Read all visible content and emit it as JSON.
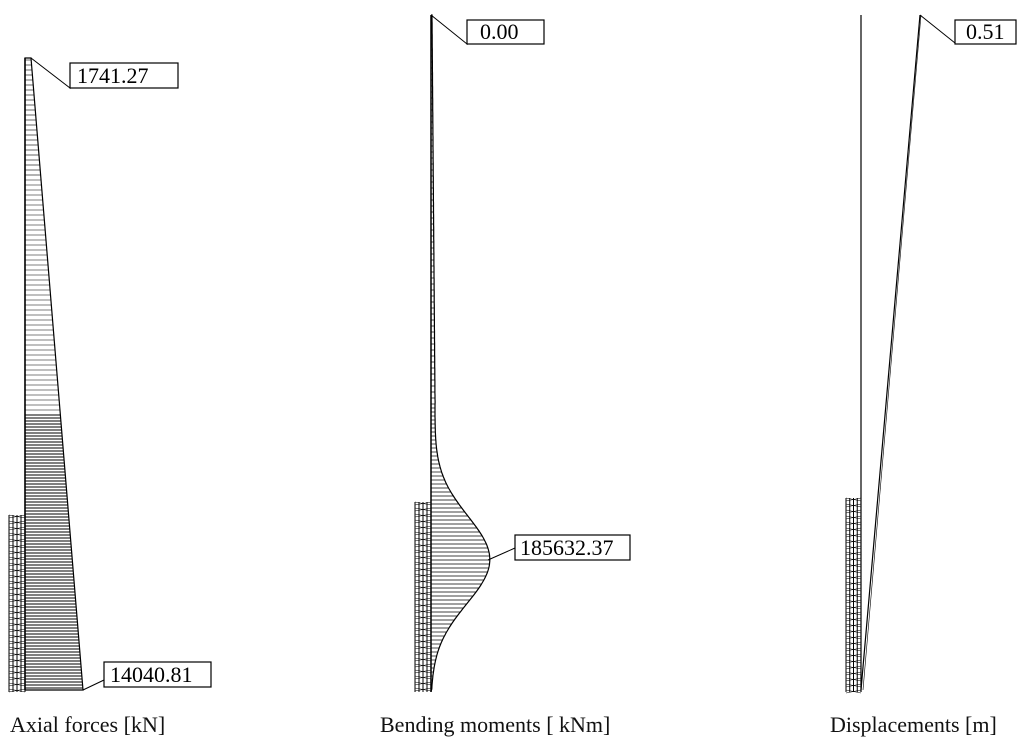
{
  "panels": [
    {
      "caption": "Axial forces [kN]",
      "top_value": "1741.27",
      "bottom_value": "14040.81"
    },
    {
      "caption": "Bending moments [ kNm]",
      "top_value": "0.00",
      "peak_value": "185632.37"
    },
    {
      "caption": "Displacements [m]",
      "top_value": "0.51"
    }
  ],
  "colors": {
    "ink": "#000000",
    "background": "#ffffff"
  }
}
